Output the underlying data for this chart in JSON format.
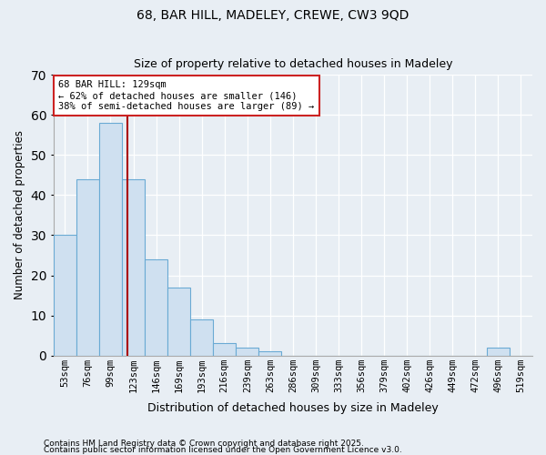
{
  "title1": "68, BAR HILL, MADELEY, CREWE, CW3 9QD",
  "title2": "Size of property relative to detached houses in Madeley",
  "xlabel": "Distribution of detached houses by size in Madeley",
  "ylabel": "Number of detached properties",
  "footnote1": "Contains HM Land Registry data © Crown copyright and database right 2025.",
  "footnote2": "Contains public sector information licensed under the Open Government Licence v3.0.",
  "bin_labels": [
    "53sqm",
    "76sqm",
    "99sqm",
    "123sqm",
    "146sqm",
    "169sqm",
    "193sqm",
    "216sqm",
    "239sqm",
    "263sqm",
    "286sqm",
    "309sqm",
    "333sqm",
    "356sqm",
    "379sqm",
    "402sqm",
    "426sqm",
    "449sqm",
    "472sqm",
    "496sqm",
    "519sqm"
  ],
  "bar_heights": [
    30,
    44,
    58,
    44,
    24,
    17,
    9,
    3,
    2,
    1,
    0,
    0,
    0,
    0,
    0,
    0,
    0,
    0,
    0,
    2,
    0
  ],
  "bar_color": "#cfe0f0",
  "bar_edge_color": "#6aaad4",
  "ylim": [
    0,
    70
  ],
  "yticks": [
    0,
    10,
    20,
    30,
    40,
    50,
    60,
    70
  ],
  "vline_color": "#aa0000",
  "vline_position": 2.74,
  "annotation_text": "68 BAR HILL: 129sqm\n← 62% of detached houses are smaller (146)\n38% of semi-detached houses are larger (89) →",
  "annotation_box_facecolor": "#ffffff",
  "annotation_box_edgecolor": "#cc2222",
  "background_color": "#e8eef4",
  "grid_color": "#ffffff",
  "spine_color": "#aaaaaa"
}
